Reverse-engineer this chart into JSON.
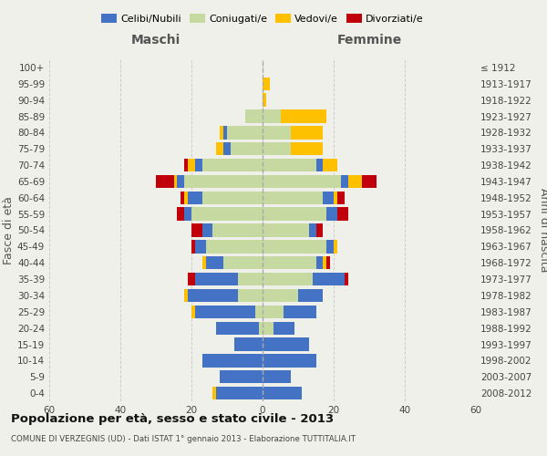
{
  "age_groups": [
    "0-4",
    "5-9",
    "10-14",
    "15-19",
    "20-24",
    "25-29",
    "30-34",
    "35-39",
    "40-44",
    "45-49",
    "50-54",
    "55-59",
    "60-64",
    "65-69",
    "70-74",
    "75-79",
    "80-84",
    "85-89",
    "90-94",
    "95-99",
    "100+"
  ],
  "birth_years": [
    "2008-2012",
    "2003-2007",
    "1998-2002",
    "1993-1997",
    "1988-1992",
    "1983-1987",
    "1978-1982",
    "1973-1977",
    "1968-1972",
    "1963-1967",
    "1958-1962",
    "1953-1957",
    "1948-1952",
    "1943-1947",
    "1938-1942",
    "1933-1937",
    "1928-1932",
    "1923-1927",
    "1918-1922",
    "1913-1917",
    "≤ 1912"
  ],
  "maschi": {
    "celibi": [
      13,
      12,
      17,
      8,
      12,
      17,
      14,
      12,
      5,
      3,
      3,
      2,
      4,
      2,
      2,
      2,
      1,
      0,
      0,
      0,
      0
    ],
    "coniugati": [
      0,
      0,
      0,
      0,
      1,
      2,
      7,
      7,
      11,
      16,
      14,
      20,
      17,
      22,
      17,
      9,
      10,
      5,
      0,
      0,
      0
    ],
    "vedovi": [
      1,
      0,
      0,
      0,
      0,
      1,
      1,
      0,
      1,
      0,
      0,
      0,
      1,
      1,
      2,
      2,
      1,
      0,
      0,
      0,
      0
    ],
    "divorziati": [
      0,
      0,
      0,
      0,
      0,
      0,
      0,
      2,
      0,
      1,
      3,
      2,
      1,
      5,
      1,
      0,
      0,
      0,
      0,
      0,
      0
    ]
  },
  "femmine": {
    "nubili": [
      11,
      8,
      15,
      13,
      6,
      9,
      7,
      9,
      2,
      2,
      2,
      3,
      3,
      2,
      2,
      0,
      0,
      0,
      0,
      0,
      0
    ],
    "coniugate": [
      0,
      0,
      0,
      0,
      3,
      6,
      10,
      14,
      15,
      18,
      13,
      18,
      17,
      22,
      15,
      8,
      8,
      5,
      0,
      0,
      0
    ],
    "vedove": [
      0,
      0,
      0,
      0,
      0,
      0,
      0,
      0,
      1,
      1,
      0,
      0,
      1,
      4,
      4,
      9,
      9,
      13,
      1,
      2,
      0
    ],
    "divorziate": [
      0,
      0,
      0,
      0,
      0,
      0,
      0,
      1,
      1,
      0,
      2,
      3,
      2,
      4,
      0,
      0,
      0,
      0,
      0,
      0,
      0
    ]
  },
  "color_celibi": "#4472c4",
  "color_coniugati": "#c5d9a0",
  "color_vedovi": "#ffc000",
  "color_divorziati": "#c0000a",
  "xlim": 60,
  "title": "Popolazione per età, sesso e stato civile - 2013",
  "subtitle": "COMUNE DI VERZEGNIS (UD) - Dati ISTAT 1° gennaio 2013 - Elaborazione TUTTITALIA.IT",
  "ylabel_left": "Fasce di età",
  "ylabel_right": "Anni di nascita",
  "xlabel_left": "Maschi",
  "xlabel_right": "Femmine",
  "bg_color": "#f0f0eb",
  "grid_color": "#cccccc"
}
